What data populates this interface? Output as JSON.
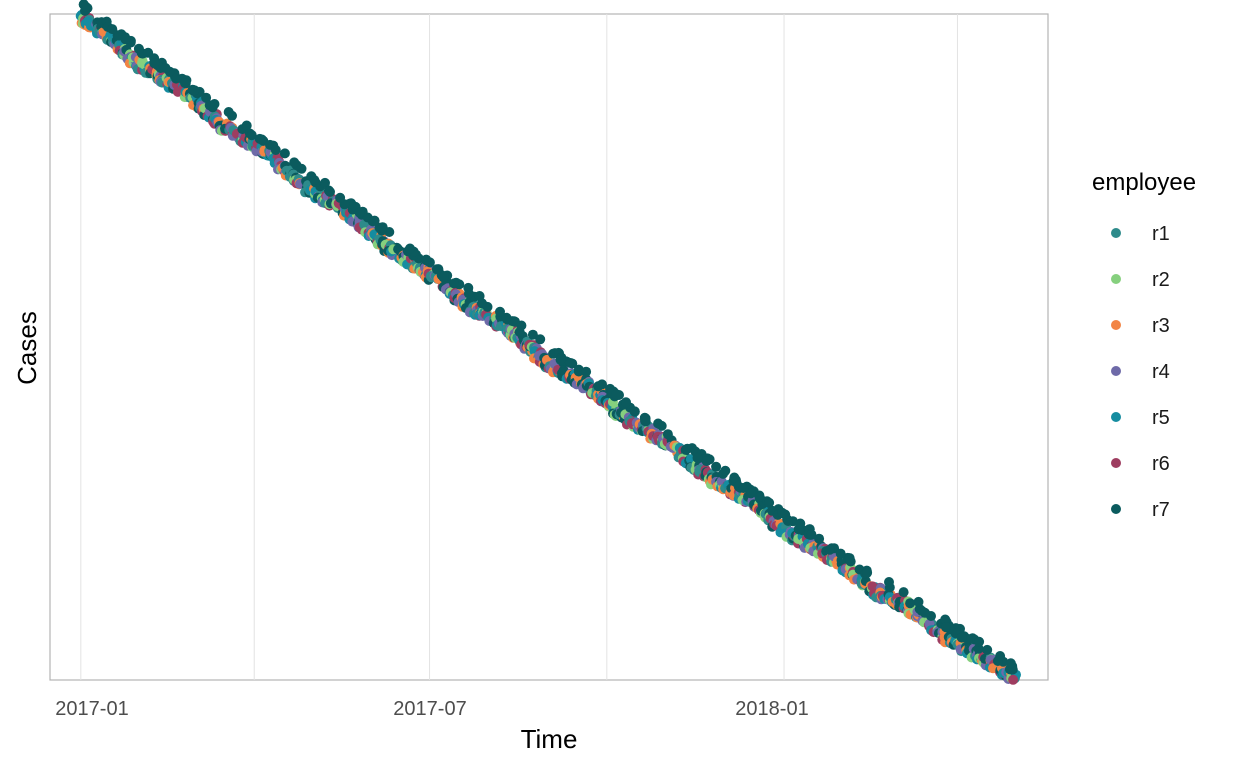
{
  "chart_data": {
    "type": "scatter",
    "title": "",
    "xlabel": "Time",
    "ylabel": "Cases",
    "x_ticks": [
      "2017-01",
      "2017-07",
      "2018-01"
    ],
    "grid": true,
    "legend_title": "employee",
    "legend_position": "right",
    "xlim": [
      "2016-12-16",
      "2018-05-18"
    ],
    "series": [
      {
        "name": "r1",
        "color": "#2E8B8B"
      },
      {
        "name": "r2",
        "color": "#86D07E"
      },
      {
        "name": "r3",
        "color": "#F28444"
      },
      {
        "name": "r4",
        "color": "#6E6AA8"
      },
      {
        "name": "r5",
        "color": "#158CA0"
      },
      {
        "name": "r6",
        "color": "#9E3D60"
      },
      {
        "name": "r7",
        "color": "#0B5B5E"
      }
    ],
    "trend_x": [
      "2017-01-01",
      "2017-07-01",
      "2018-01-01",
      "2018-04-30"
    ],
    "trend_y_fraction": [
      1.0,
      0.61,
      0.23,
      0.0
    ]
  }
}
